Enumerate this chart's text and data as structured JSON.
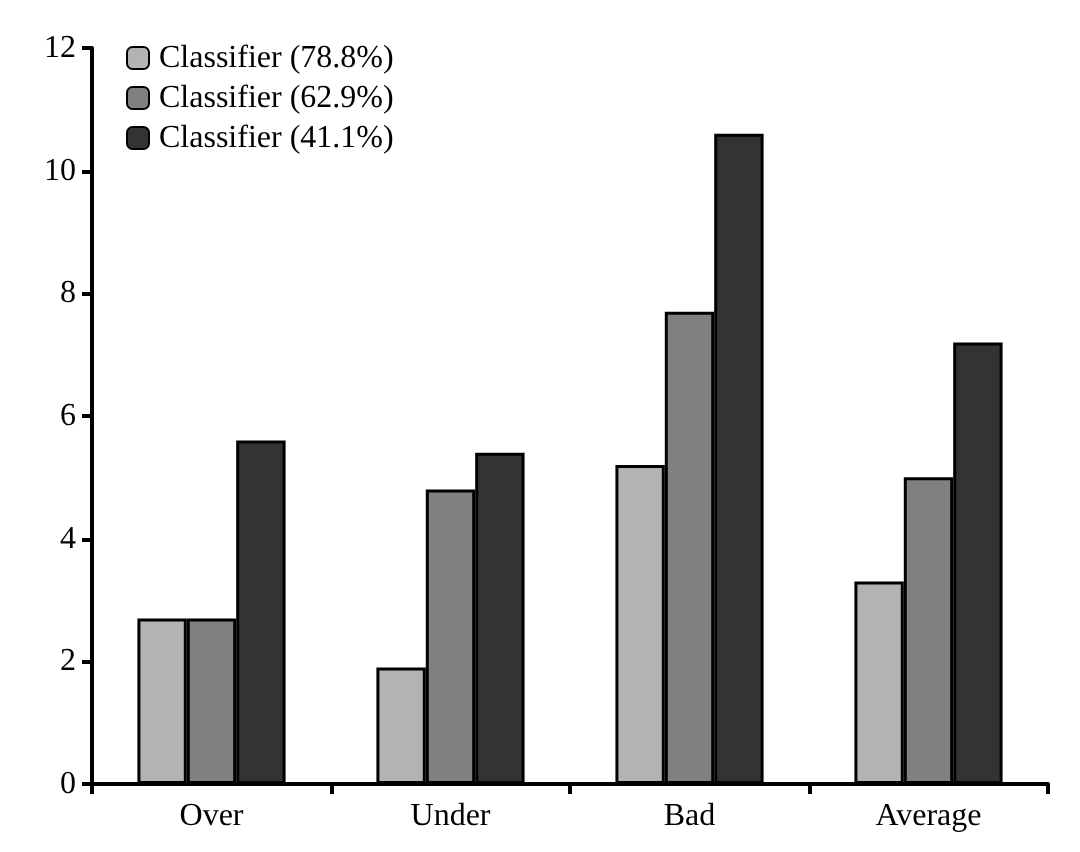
{
  "chart_data": {
    "type": "bar",
    "categories": [
      "Over",
      "Under",
      "Bad",
      "Average"
    ],
    "series": [
      {
        "name": "Classifier (78.8%)",
        "color": "#b3b3b3",
        "values": [
          2.7,
          1.9,
          5.2,
          3.3
        ]
      },
      {
        "name": "Classifier (62.9%)",
        "color": "#808080",
        "values": [
          2.7,
          4.8,
          7.7,
          5.0
        ]
      },
      {
        "name": "Classifier (41.1%)",
        "color": "#333333",
        "values": [
          5.6,
          5.4,
          10.6,
          7.2
        ]
      }
    ],
    "ylim": [
      0,
      12
    ],
    "yticks": [
      0,
      2,
      4,
      6,
      8,
      10,
      12
    ],
    "grid": false,
    "legend": "top left"
  }
}
